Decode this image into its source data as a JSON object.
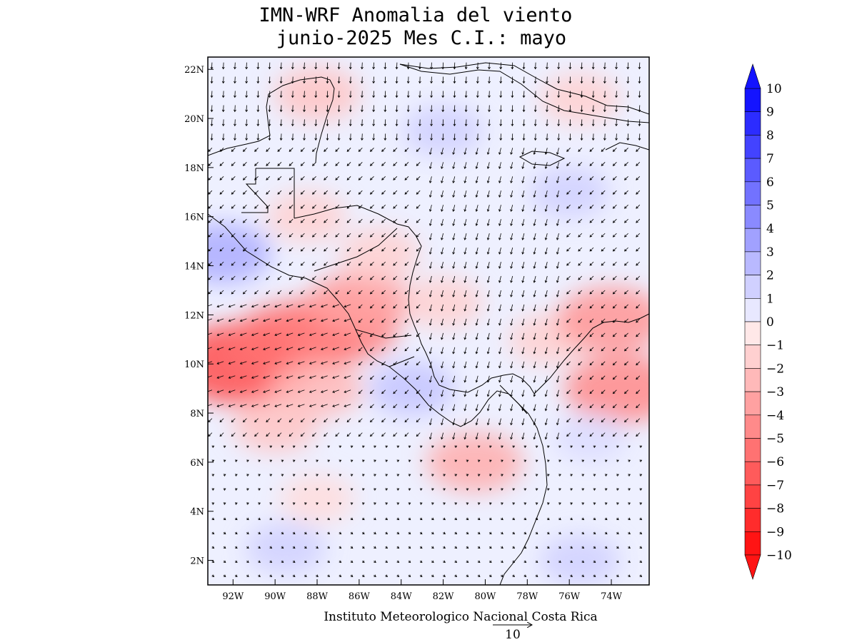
{
  "title_line1": "IMN-WRF Anomalia del viento",
  "title_line2": "junio-2025 Mes C.I.: mayo",
  "credit": "Instituto Meteorologico Nacional Costa Rica",
  "reference_vector_label": "10",
  "colors": {
    "positive_max": "#0000ff",
    "negative_max": "#ff0000",
    "zero": "#ffffff"
  },
  "chart_data": {
    "type": "heatmap",
    "title": "IMN-WRF Anomalia del viento junio-2025 Mes C.I.: mayo",
    "variable": "wind anomaly (shading) with wind vectors",
    "xlim": [
      -93.2,
      -72.2
    ],
    "ylim": [
      1.0,
      22.5
    ],
    "x_ticks": [
      "92W",
      "90W",
      "88W",
      "86W",
      "84W",
      "82W",
      "80W",
      "78W",
      "76W",
      "74W"
    ],
    "x_tick_values": [
      -92,
      -90,
      -88,
      -86,
      -84,
      -82,
      -80,
      -78,
      -76,
      -74
    ],
    "y_ticks": [
      "2N",
      "4N",
      "6N",
      "8N",
      "10N",
      "12N",
      "14N",
      "16N",
      "18N",
      "20N",
      "22N"
    ],
    "y_tick_values": [
      2,
      4,
      6,
      8,
      10,
      12,
      14,
      16,
      18,
      20,
      22
    ],
    "colorbar": {
      "levels": [
        "10",
        "9",
        "8",
        "7",
        "6",
        "5",
        "4",
        "3",
        "2",
        "1",
        "0",
        "-1",
        "-2",
        "-3",
        "-4",
        "-5",
        "-6",
        "-7",
        "-8",
        "-9",
        "-10"
      ],
      "min": -10,
      "max": 10,
      "extend": "both",
      "orientation": "vertical",
      "placement": "right"
    },
    "anomaly_regions": [
      {
        "lon": -91.5,
        "lat": 10.0,
        "value": -7.5
      },
      {
        "lon": -89.0,
        "lat": 11.0,
        "value": -6.0
      },
      {
        "lon": -87.0,
        "lat": 11.5,
        "value": -5.5
      },
      {
        "lon": -86.0,
        "lat": 12.5,
        "value": -4.0
      },
      {
        "lon": -88.0,
        "lat": 9.0,
        "value": -3.0
      },
      {
        "lon": -85.0,
        "lat": 14.5,
        "value": -2.0
      },
      {
        "lon": -88.5,
        "lat": 16.0,
        "value": -2.0
      },
      {
        "lon": -88.0,
        "lat": 21.0,
        "value": -2.5
      },
      {
        "lon": -82.0,
        "lat": 12.5,
        "value": -2.0
      },
      {
        "lon": -80.5,
        "lat": 6.0,
        "value": -3.5
      },
      {
        "lon": -77.0,
        "lat": 11.0,
        "value": -2.0
      },
      {
        "lon": -74.0,
        "lat": 11.8,
        "value": -4.5
      },
      {
        "lon": -73.5,
        "lat": 9.0,
        "value": -5.0
      },
      {
        "lon": -75.5,
        "lat": 20.8,
        "value": -2.0
      },
      {
        "lon": -90.0,
        "lat": 7.5,
        "value": -2.5
      },
      {
        "lon": -88.0,
        "lat": 4.5,
        "value": -1.5
      },
      {
        "lon": -92.5,
        "lat": 14.5,
        "value": 3.5
      },
      {
        "lon": -83.5,
        "lat": 9.0,
        "value": 2.5
      },
      {
        "lon": -82.0,
        "lat": 19.5,
        "value": 2.0
      },
      {
        "lon": -76.0,
        "lat": 17.0,
        "value": 2.0
      },
      {
        "lon": -75.5,
        "lat": 2.0,
        "value": 2.0
      },
      {
        "lon": -89.5,
        "lat": 2.5,
        "value": 2.0
      },
      {
        "lon": -75.0,
        "lat": 7.0,
        "value": 1.5
      }
    ]
  }
}
